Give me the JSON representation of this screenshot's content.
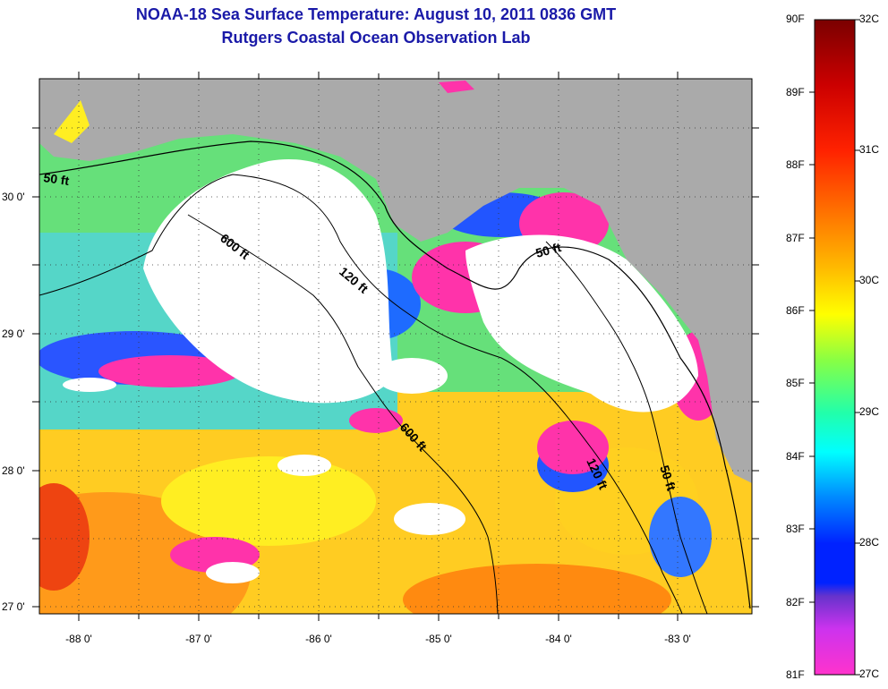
{
  "title": {
    "line1": "NOAA-18 Sea Surface Temperature:  August 10, 2011 0836 GMT",
    "line2": "Rutgers Coastal Ocean Observation Lab"
  },
  "map": {
    "lon_labels": [
      "-88 0'",
      "-87 0'",
      "-86 0'",
      "-85 0'",
      "-84 0'",
      "-83 0'"
    ],
    "lat_labels": [
      "30 0'",
      "29 0'",
      "28 0'",
      "27 0'"
    ],
    "contour_labels": [
      {
        "id": "c50a",
        "text": "50 ft"
      },
      {
        "id": "c600a",
        "text": "600 ft"
      },
      {
        "id": "c120a",
        "text": "120 ft"
      },
      {
        "id": "c50b",
        "text": "50 ft"
      },
      {
        "id": "c600b",
        "text": "600 ft"
      },
      {
        "id": "c120b",
        "text": "120 ft"
      },
      {
        "id": "c50c",
        "text": "50 ft"
      }
    ],
    "colors": {
      "land": "#aaaaaa",
      "cloud": "#ffffff",
      "warm": "#ff8800",
      "cool": "#00ccff",
      "cold": "#ff33aa"
    }
  },
  "colorbar": {
    "f_labels": [
      "90F",
      "89F",
      "88F",
      "87F",
      "86F",
      "85F",
      "84F",
      "83F",
      "82F",
      "81F"
    ],
    "c_labels": [
      "32C",
      "31C",
      "30C",
      "29C",
      "28C",
      "27C"
    ],
    "gradient": [
      "#7a0000",
      "#cc0000",
      "#ff2200",
      "#ff7700",
      "#ffbb00",
      "#ffff00",
      "#88ff44",
      "#22ffaa",
      "#00ffff",
      "#0088ff",
      "#0022ff",
      "#6633cc",
      "#cc33ee",
      "#ff33cc"
    ]
  }
}
